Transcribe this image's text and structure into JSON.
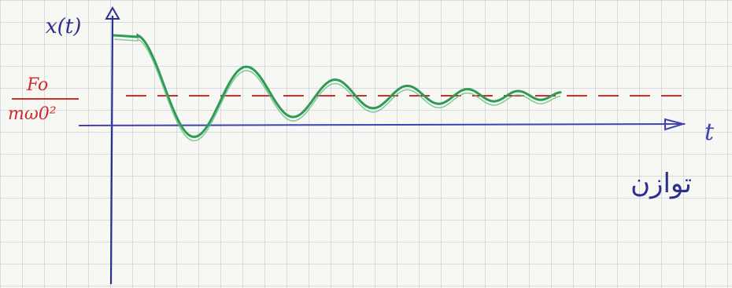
{
  "axis": {
    "y_label": "x(t)",
    "x_label": "t"
  },
  "equilibrium": {
    "numerator": "Fo",
    "denominator": "mω0²"
  },
  "note": "توازن"
}
